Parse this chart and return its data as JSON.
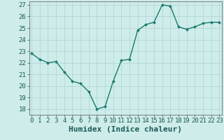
{
  "xlabel": "Humidex (Indice chaleur)",
  "ylabel": "",
  "x": [
    0,
    1,
    2,
    3,
    4,
    5,
    6,
    7,
    8,
    9,
    10,
    11,
    12,
    13,
    14,
    15,
    16,
    17,
    18,
    19,
    20,
    21,
    22,
    23
  ],
  "y": [
    22.8,
    22.3,
    22.0,
    22.1,
    21.2,
    20.4,
    20.2,
    19.5,
    18.0,
    18.2,
    20.4,
    22.2,
    22.3,
    24.8,
    25.3,
    25.5,
    27.0,
    26.9,
    25.1,
    24.9,
    25.1,
    25.4,
    25.5,
    25.5
  ],
  "line_color": "#1a7a6e",
  "marker": "D",
  "marker_size": 2.0,
  "bg_color": "#ceecea",
  "grid_color": "#aed4d0",
  "ylim_min": 17.5,
  "ylim_max": 27.3,
  "xlim_min": -0.3,
  "xlim_max": 23.3,
  "yticks": [
    18,
    19,
    20,
    21,
    22,
    23,
    24,
    25,
    26,
    27
  ],
  "xticks": [
    0,
    1,
    2,
    3,
    4,
    5,
    6,
    7,
    8,
    9,
    10,
    11,
    12,
    13,
    14,
    15,
    16,
    17,
    18,
    19,
    20,
    21,
    22,
    23
  ],
  "tick_label_fontsize": 6.5,
  "xlabel_fontsize": 8.0,
  "line_width": 1.0,
  "marker_color": "#1a7a6e",
  "spine_color": "#555555",
  "tick_color": "#1a5a55",
  "label_color": "#1a5a55"
}
